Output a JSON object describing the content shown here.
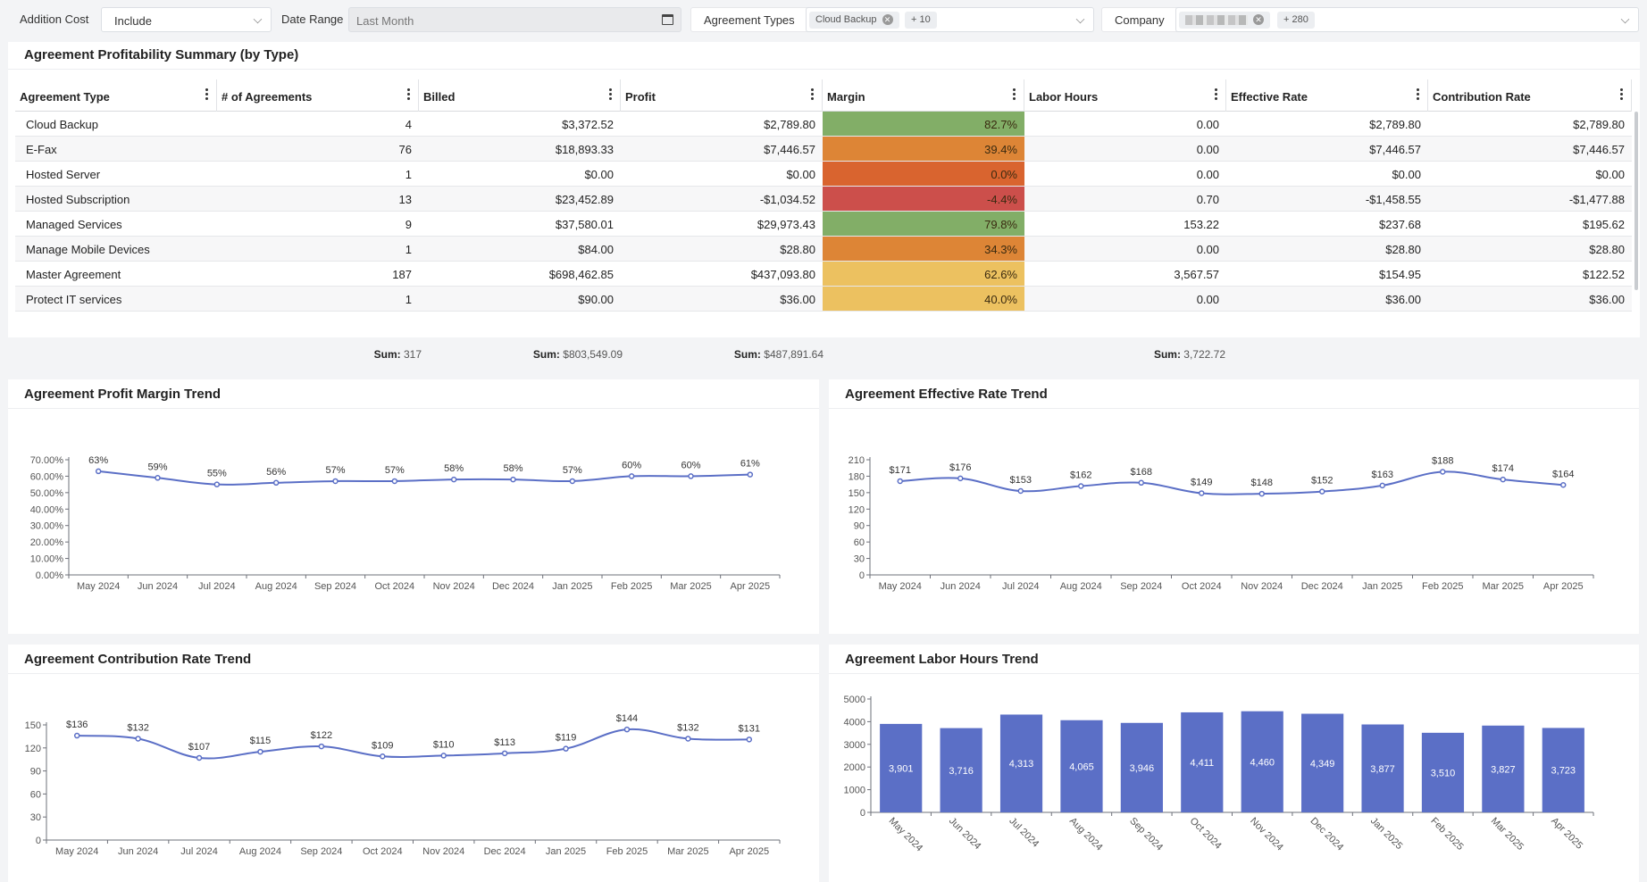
{
  "filters": {
    "addition_cost": {
      "label": "Addition Cost",
      "value": "Include"
    },
    "date_range": {
      "label": "Date Range",
      "value": "Last Month"
    },
    "agreement_types": {
      "label": "Agreement Types",
      "chip": "Cloud Backup",
      "more": "+ 10"
    },
    "company": {
      "label": "Company",
      "more": "+ 280"
    }
  },
  "summary": {
    "title": "Agreement Profitability Summary (by Type)",
    "columns": [
      "Agreement Type",
      "# of Agreements",
      "Billed",
      "Profit",
      "Margin",
      "Labor Hours",
      "Effective Rate",
      "Contribution Rate"
    ],
    "rows": [
      {
        "type": "Cloud Backup",
        "count": "4",
        "billed": "$3,372.52",
        "profit": "$2,789.80",
        "margin": "82.7%",
        "margin_value": 82.7,
        "hours": "0.00",
        "eff": "$2,789.80",
        "contrib": "$2,789.80"
      },
      {
        "type": "E-Fax",
        "count": "76",
        "billed": "$18,893.33",
        "profit": "$7,446.57",
        "margin": "39.4%",
        "margin_value": 39.4,
        "hours": "0.00",
        "eff": "$7,446.57",
        "contrib": "$7,446.57"
      },
      {
        "type": "Hosted Server",
        "count": "1",
        "billed": "$0.00",
        "profit": "$0.00",
        "margin": "0.0%",
        "margin_value": 0.0,
        "hours": "0.00",
        "eff": "$0.00",
        "contrib": "$0.00"
      },
      {
        "type": "Hosted Subscription",
        "count": "13",
        "billed": "$23,452.89",
        "profit": "-$1,034.52",
        "margin": "-4.4%",
        "margin_value": -4.4,
        "hours": "0.70",
        "eff": "-$1,458.55",
        "contrib": "-$1,477.88"
      },
      {
        "type": "Managed Services",
        "count": "9",
        "billed": "$37,580.01",
        "profit": "$29,973.43",
        "margin": "79.8%",
        "margin_value": 79.8,
        "hours": "153.22",
        "eff": "$237.68",
        "contrib": "$195.62"
      },
      {
        "type": "Manage Mobile Devices",
        "count": "1",
        "billed": "$84.00",
        "profit": "$28.80",
        "margin": "34.3%",
        "margin_value": 34.3,
        "hours": "0.00",
        "eff": "$28.80",
        "contrib": "$28.80"
      },
      {
        "type": "Master Agreement",
        "count": "187",
        "billed": "$698,462.85",
        "profit": "$437,093.80",
        "margin": "62.6%",
        "margin_value": 62.6,
        "hours": "3,567.57",
        "eff": "$154.95",
        "contrib": "$122.52"
      },
      {
        "type": "Protect IT services",
        "count": "1",
        "billed": "$90.00",
        "profit": "$36.00",
        "margin": "40.0%",
        "margin_value": 40.0,
        "hours": "0.00",
        "eff": "$36.00",
        "contrib": "$36.00"
      }
    ],
    "sum_label": "Sum:",
    "sums": {
      "count": "317",
      "billed": "$803,549.09",
      "profit": "$487,891.64",
      "hours": "3,722.72"
    },
    "colors": {
      "green": "#82ae67",
      "orange_red": "#d9642f",
      "red": "#cc4f4b",
      "orange": "#dd8536",
      "yellow": "#ecc160"
    }
  },
  "chart_data": [
    {
      "type": "line",
      "title": "Agreement Profit Margin Trend",
      "categories": [
        "May 2024",
        "Jun 2024",
        "Jul 2024",
        "Aug 2024",
        "Sep 2024",
        "Oct 2024",
        "Nov 2024",
        "Dec 2024",
        "Jan 2025",
        "Feb 2025",
        "Mar 2025",
        "Apr 2025"
      ],
      "values": [
        63,
        59,
        55,
        56,
        57,
        57,
        58,
        58,
        57,
        60,
        60,
        61
      ],
      "labels": [
        "63%",
        "59%",
        "55%",
        "56%",
        "57%",
        "57%",
        "58%",
        "58%",
        "57%",
        "60%",
        "60%",
        "61%"
      ],
      "yticks": [
        "0.00%",
        "10.00%",
        "20.00%",
        "30.00%",
        "40.00%",
        "50.00%",
        "60.00%",
        "70.00%"
      ],
      "ylim": [
        0,
        70
      ],
      "color": "#5b6fc6"
    },
    {
      "type": "line",
      "title": "Agreement Effective Rate Trend",
      "categories": [
        "May 2024",
        "Jun 2024",
        "Jul 2024",
        "Aug 2024",
        "Sep 2024",
        "Oct 2024",
        "Nov 2024",
        "Dec 2024",
        "Jan 2025",
        "Feb 2025",
        "Mar 2025",
        "Apr 2025"
      ],
      "values": [
        171,
        176,
        153,
        162,
        168,
        149,
        148,
        152,
        163,
        188,
        174,
        164
      ],
      "labels": [
        "$171",
        "$176",
        "$153",
        "$162",
        "$168",
        "$149",
        "$148",
        "$152",
        "$163",
        "$188",
        "$174",
        "$164"
      ],
      "yticks": [
        "0",
        "30",
        "60",
        "90",
        "120",
        "150",
        "180",
        "210"
      ],
      "ylim": [
        0,
        210
      ],
      "color": "#5b6fc6"
    },
    {
      "type": "line",
      "title": "Agreement Contribution Rate Trend",
      "categories": [
        "May 2024",
        "Jun 2024",
        "Jul 2024",
        "Aug 2024",
        "Sep 2024",
        "Oct 2024",
        "Nov 2024",
        "Dec 2024",
        "Jan 2025",
        "Feb 2025",
        "Mar 2025",
        "Apr 2025"
      ],
      "values": [
        136,
        132,
        107,
        115,
        122,
        109,
        110,
        113,
        119,
        144,
        132,
        131
      ],
      "labels": [
        "$136",
        "$132",
        "$107",
        "$115",
        "$122",
        "$109",
        "$110",
        "$113",
        "$119",
        "$144",
        "$132",
        "$131"
      ],
      "yticks": [
        "0",
        "30",
        "60",
        "90",
        "120",
        "150"
      ],
      "ylim": [
        0,
        150
      ],
      "color": "#5b6fc6"
    },
    {
      "type": "bar",
      "title": "Agreement Labor Hours Trend",
      "categories": [
        "May 2024",
        "Jun 2024",
        "Jul 2024",
        "Aug 2024",
        "Sep 2024",
        "Oct 2024",
        "Nov 2024",
        "Dec 2024",
        "Jan 2025",
        "Feb 2025",
        "Mar 2025",
        "Apr 2025"
      ],
      "values": [
        3901,
        3716,
        4313,
        4065,
        3946,
        4411,
        4460,
        4349,
        3877,
        3510,
        3827,
        3723
      ],
      "labels": [
        "3,901",
        "3,716",
        "4,313",
        "4,065",
        "3,946",
        "4,411",
        "4,460",
        "4,349",
        "3,877",
        "3,510",
        "3,827",
        "3,723"
      ],
      "yticks": [
        "0",
        "1000",
        "2000",
        "3000",
        "4000",
        "5000"
      ],
      "ylim": [
        0,
        5000
      ],
      "color": "#5b6fc6"
    }
  ]
}
